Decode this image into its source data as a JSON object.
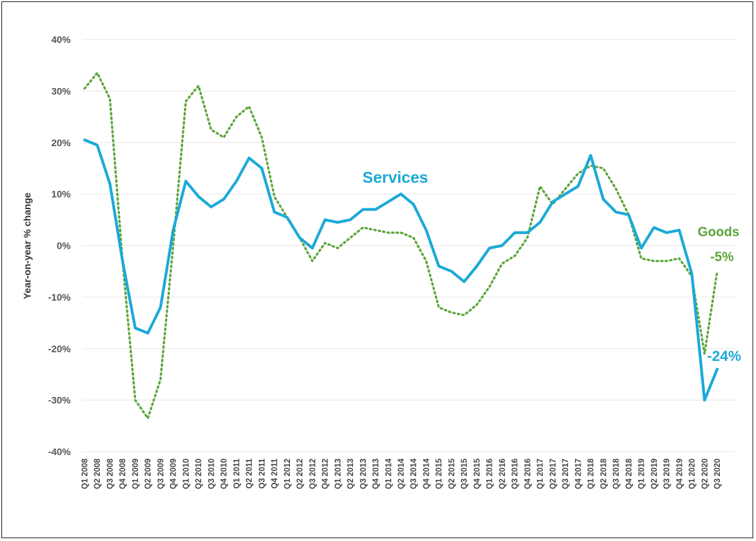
{
  "chart_data": {
    "type": "line",
    "title": "",
    "xlabel": "",
    "ylabel": "Year-on-year % change",
    "ylim": [
      -40,
      40
    ],
    "y_ticks": [
      "40%",
      "30%",
      "20%",
      "10%",
      "0%",
      "-10%",
      "-20%",
      "-30%",
      "-40%"
    ],
    "grid": "horizontal",
    "x": [
      "Q1 2008",
      "Q2 2008",
      "Q3 2008",
      "Q4 2008",
      "Q1 2009",
      "Q2 2009",
      "Q3 2009",
      "Q4 2009",
      "Q1 2010",
      "Q2 2010",
      "Q3 2010",
      "Q4 2010",
      "Q1 2011",
      "Q2 2011",
      "Q3 2011",
      "Q4 2011",
      "Q1 2012",
      "Q2 2012",
      "Q3 2012",
      "Q4 2012",
      "Q1 2013",
      "Q2 2013",
      "Q3 2013",
      "Q4 2013",
      "Q1 2014",
      "Q2 2014",
      "Q3 2014",
      "Q4 2014",
      "Q1 2015",
      "Q2 2015",
      "Q3 2015",
      "Q4 2015",
      "Q1 2016",
      "Q2 2016",
      "Q3 2016",
      "Q4 2016",
      "Q1 2017",
      "Q2 2017",
      "Q3 2017",
      "Q4 2017",
      "Q1 2018",
      "Q2 2018",
      "Q3 2018",
      "Q4 2018",
      "Q1 2019",
      "Q2 2019",
      "Q3 2019",
      "Q4 2019",
      "Q1 2020",
      "Q2 2020",
      "Q3 2020"
    ],
    "series": [
      {
        "name": "Services",
        "color": "#1ba9d8",
        "style": "solid",
        "values": [
          20.5,
          19.5,
          12,
          -3,
          -16,
          -17,
          -12,
          3,
          12.5,
          9.5,
          7.5,
          9,
          12.5,
          17,
          15,
          6.5,
          5.5,
          1.5,
          -0.5,
          5,
          4.5,
          5,
          7,
          7,
          8.5,
          10,
          8,
          3,
          -4,
          -5,
          -7,
          -4,
          -0.5,
          0,
          2.5,
          2.5,
          4.5,
          8.5,
          10,
          11.5,
          17.5,
          9,
          6.5,
          6,
          -0.5,
          3.5,
          2.5,
          3,
          -5.5,
          -30,
          -24
        ]
      },
      {
        "name": "Goods",
        "color": "#5aa53a",
        "style": "dotted",
        "values": [
          30.5,
          33.5,
          28.5,
          -3,
          -30,
          -33.5,
          -26,
          0,
          28,
          31,
          22.5,
          21,
          25,
          27,
          21,
          9.5,
          5.5,
          1.5,
          -3,
          0.5,
          -0.5,
          1.5,
          3.5,
          3,
          2.5,
          2.5,
          1.5,
          -3,
          -12,
          -13,
          -13.5,
          -11.5,
          -8,
          -3.5,
          -2,
          1.5,
          11.5,
          8,
          11,
          14,
          15.5,
          15,
          11,
          6,
          -2.5,
          -3,
          -3,
          -2.5,
          -6,
          -21,
          -5
        ]
      }
    ],
    "annotations": [
      {
        "text": "Services",
        "series": "Services"
      },
      {
        "text": "Goods",
        "series": "Goods"
      },
      {
        "text": "-5%",
        "series": "Goods"
      },
      {
        "text": "-24%",
        "series": "Services"
      }
    ]
  }
}
